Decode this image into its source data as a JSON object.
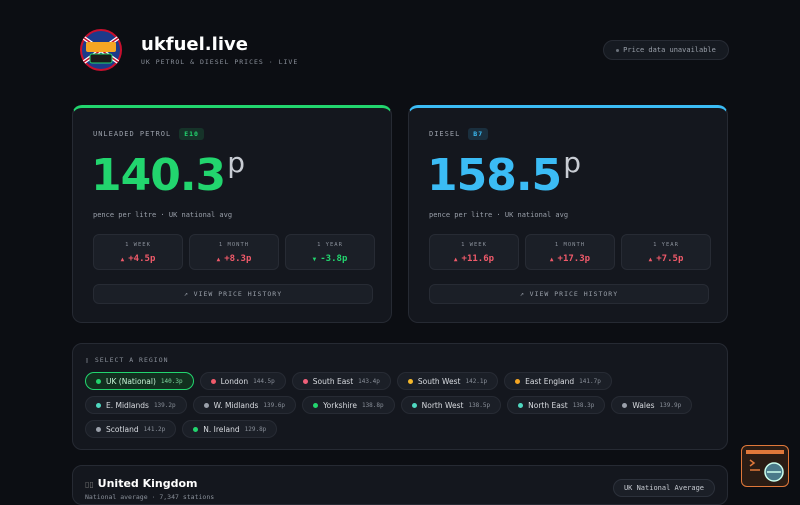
{
  "header": {
    "logo_text": "UK FUEL LIVE",
    "title": "ukfuel.live",
    "subtitle": "UK PETROL & DIESEL PRICES · LIVE",
    "status": "Price data unavailable"
  },
  "cards": [
    {
      "label": "UNLEADED PETROL",
      "badge": "E10",
      "price": "140.3",
      "unit": "p",
      "caption": "pence per litre · UK national avg",
      "color": "#22d56e",
      "changes": [
        {
          "period": "1 WEEK",
          "arrow": "▲",
          "value": "+4.5p",
          "color": "#f05a6a"
        },
        {
          "period": "1 MONTH",
          "arrow": "▲",
          "value": "+8.3p",
          "color": "#f05a6a"
        },
        {
          "period": "1 YEAR",
          "arrow": "▼",
          "value": "-3.8p",
          "color": "#22d56e"
        }
      ],
      "button": "↗ VIEW PRICE HISTORY"
    },
    {
      "label": "DIESEL",
      "badge": "B7",
      "price": "158.5",
      "unit": "p",
      "caption": "pence per litre · UK national avg",
      "color": "#3bbcf5",
      "changes": [
        {
          "period": "1 WEEK",
          "arrow": "▲",
          "value": "+11.6p",
          "color": "#f05a6a"
        },
        {
          "period": "1 MONTH",
          "arrow": "▲",
          "value": "+17.3p",
          "color": "#f05a6a"
        },
        {
          "period": "1 YEAR",
          "arrow": "▲",
          "value": "+7.5p",
          "color": "#f05a6a"
        }
      ],
      "button": "↗ VIEW PRICE HISTORY"
    }
  ],
  "regions": {
    "heading": "SELECT A REGION",
    "items": [
      {
        "name": "UK (National)",
        "price": "140.3p",
        "color": "#22d56e",
        "active": true
      },
      {
        "name": "London",
        "price": "144.5p",
        "color": "#f05a6a"
      },
      {
        "name": "South East",
        "price": "143.4p",
        "color": "#f0607a"
      },
      {
        "name": "South West",
        "price": "142.1p",
        "color": "#f5b82a"
      },
      {
        "name": "East England",
        "price": "141.7p",
        "color": "#f5a623"
      },
      {
        "name": "E. Midlands",
        "price": "139.2p",
        "color": "#4fd8c0"
      },
      {
        "name": "W. Midlands",
        "price": "139.6p",
        "color": "#9aa0aa"
      },
      {
        "name": "Yorkshire",
        "price": "138.8p",
        "color": "#22d56e"
      },
      {
        "name": "North West",
        "price": "138.5p",
        "color": "#4fd8c0"
      },
      {
        "name": "North East",
        "price": "138.3p",
        "color": "#4fd8c0"
      },
      {
        "name": "Wales",
        "price": "139.9p",
        "color": "#9aa0aa"
      },
      {
        "name": "Scotland",
        "price": "141.2p",
        "color": "#9aa0aa"
      },
      {
        "name": "N. Ireland",
        "price": "129.8p",
        "color": "#22d56e"
      }
    ]
  },
  "summary": {
    "title": "United Kingdom",
    "subtitle": "National average · 7,347 stations",
    "button": "UK National Average"
  }
}
